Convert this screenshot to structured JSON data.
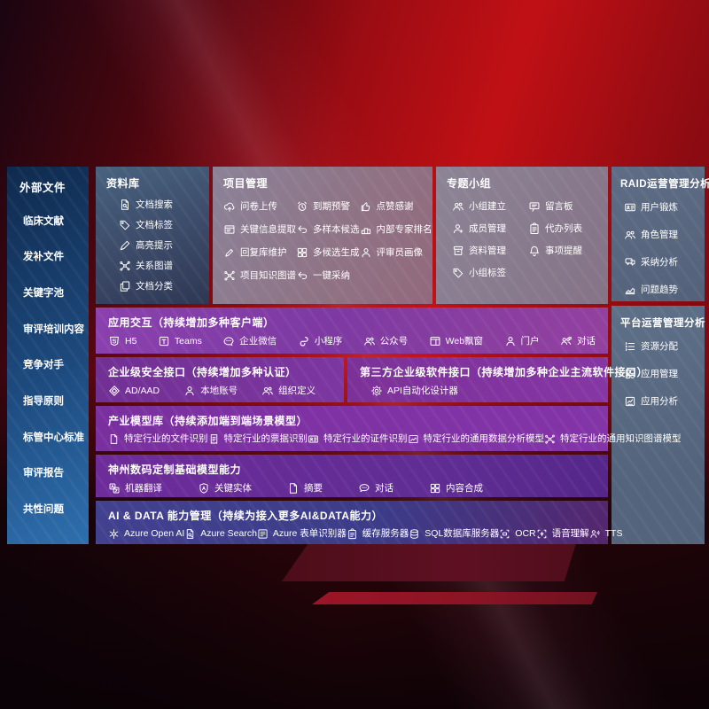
{
  "colors": {
    "background_red": "#c01015",
    "panel_blue": "#1d4a7e",
    "panel_slate": "#5e6d85",
    "panel_mauve": "#8c8298",
    "band_purple": "#7d3aa2",
    "band_indigo": "#3c3c89"
  },
  "board": {
    "external_files": {
      "title": "外部文件",
      "items": [
        {
          "label": "临床文献"
        },
        {
          "label": "发补文件"
        },
        {
          "label": "关键字池"
        },
        {
          "label": "审评培训内容"
        },
        {
          "label": "竞争对手"
        },
        {
          "label": "指导原则"
        },
        {
          "label": "标管中心标准"
        },
        {
          "label": "审评报告"
        },
        {
          "label": "共性问题"
        }
      ]
    },
    "repository": {
      "title": "资料库",
      "items": [
        {
          "label": "文档搜索",
          "icon": "doc-search"
        },
        {
          "label": "文档标签",
          "icon": "tag"
        },
        {
          "label": "高亮提示",
          "icon": "highlight-pen"
        },
        {
          "label": "关系图谱",
          "icon": "graph"
        },
        {
          "label": "文档分类",
          "icon": "copy"
        }
      ]
    },
    "project_mgmt": {
      "title": "项目管理",
      "items": [
        {
          "label": "问卷上传",
          "icon": "cloud-upload"
        },
        {
          "label": "到期预警",
          "icon": "alarm"
        },
        {
          "label": "点赞感谢",
          "icon": "thumb-up"
        },
        {
          "label": "关键信息提取",
          "icon": "window"
        },
        {
          "label": "多样本候选",
          "icon": "arrow-back"
        },
        {
          "label": "内部专家排名",
          "icon": "podium"
        },
        {
          "label": "回复库维护",
          "icon": "pen"
        },
        {
          "label": "多候选生成",
          "icon": "grid"
        },
        {
          "label": "评审员画像",
          "icon": "user"
        },
        {
          "label": "项目知识图谱",
          "icon": "graph"
        },
        {
          "label": "一键采纳",
          "icon": "arrow-back"
        }
      ]
    },
    "topic_groups": {
      "title": "专题小组",
      "items": [
        {
          "label": "小组建立",
          "icon": "users"
        },
        {
          "label": "留言板",
          "icon": "bbs-board"
        },
        {
          "label": "成员管理",
          "icon": "user-add"
        },
        {
          "label": "代办列表",
          "icon": "clipboard"
        },
        {
          "label": "资料管理",
          "icon": "archive"
        },
        {
          "label": "事项提醒",
          "icon": "bell"
        },
        {
          "label": "小组标签",
          "icon": "tag"
        }
      ]
    },
    "raid_analysis": {
      "title": "RAID运营管理分析",
      "items": [
        {
          "label": "用户锻炼",
          "icon": "id-card"
        },
        {
          "label": "角色管理",
          "icon": "users"
        },
        {
          "label": "采纳分析",
          "icon": "chat-qa"
        },
        {
          "label": "问题趋势",
          "icon": "trend"
        }
      ]
    },
    "platform_analysis": {
      "title": "平台运营管理分析",
      "items": [
        {
          "label": "资源分配",
          "icon": "list"
        },
        {
          "label": "应用管理",
          "icon": "apps-grid"
        },
        {
          "label": "应用分析",
          "icon": "app-chart"
        }
      ]
    },
    "app_interaction": {
      "title": "应用交互（持续增加多种客户端）",
      "items": [
        {
          "label": "H5",
          "icon": "h5-shield"
        },
        {
          "label": "Teams",
          "icon": "teams"
        },
        {
          "label": "企业微信",
          "icon": "wechat-bubble"
        },
        {
          "label": "小程序",
          "icon": "miniprogram"
        },
        {
          "label": "公众号",
          "icon": "users"
        },
        {
          "label": "Web飘窗",
          "icon": "browser-window"
        },
        {
          "label": "门户",
          "icon": "user"
        },
        {
          "label": "对话",
          "icon": "dialog-users"
        }
      ]
    },
    "security_api": {
      "title": "企业级安全接口（持续增加多种认证）",
      "items": [
        {
          "label": "AD/AAD",
          "icon": "diamond"
        },
        {
          "label": "本地账号",
          "icon": "user"
        },
        {
          "label": "组织定义",
          "icon": "users"
        }
      ]
    },
    "third_party_api": {
      "title": "第三方企业级软件接口（持续增加多种企业主流软件接口）",
      "items": [
        {
          "label": "API自动化设计器",
          "icon": "gear"
        }
      ]
    },
    "industry_models": {
      "title": "产业模型库（持续添加端到端场景模型）",
      "items": [
        {
          "label": "特定行业的文件识别",
          "icon": "file"
        },
        {
          "label": "特定行业的票据识别",
          "icon": "receipt"
        },
        {
          "label": "特定行业的证件识别",
          "icon": "id-card"
        },
        {
          "label": "特定行业的通用数据分析模型",
          "icon": "image-chart"
        },
        {
          "label": "特定行业的通用知识图谱模型",
          "icon": "graph"
        }
      ]
    },
    "base_models": {
      "title": "神州数码定制基础模型能力",
      "items": [
        {
          "label": "机器翻译",
          "icon": "translate"
        },
        {
          "label": "关键实体",
          "icon": "shield-a"
        },
        {
          "label": "摘要",
          "icon": "file"
        },
        {
          "label": "对话",
          "icon": "chat-bubble"
        },
        {
          "label": "内容合成",
          "icon": "grid"
        }
      ]
    },
    "ai_data": {
      "title": "AI & DATA 能力管理（持续为接入更多AI&DATA能力）",
      "items": [
        {
          "label": "Azure Open AI",
          "icon": "openai-flower"
        },
        {
          "label": "Azure Search",
          "icon": "doc-search"
        },
        {
          "label": "Azure 表单识别器",
          "icon": "form"
        },
        {
          "label": "缓存服务器",
          "icon": "clipboard"
        },
        {
          "label": "SQL数据库服务器",
          "icon": "database"
        },
        {
          "label": "OCR",
          "icon": "ocr-brackets"
        },
        {
          "label": "语音理解",
          "icon": "voice"
        },
        {
          "label": "TTS",
          "icon": "tts-speaker"
        }
      ]
    }
  }
}
